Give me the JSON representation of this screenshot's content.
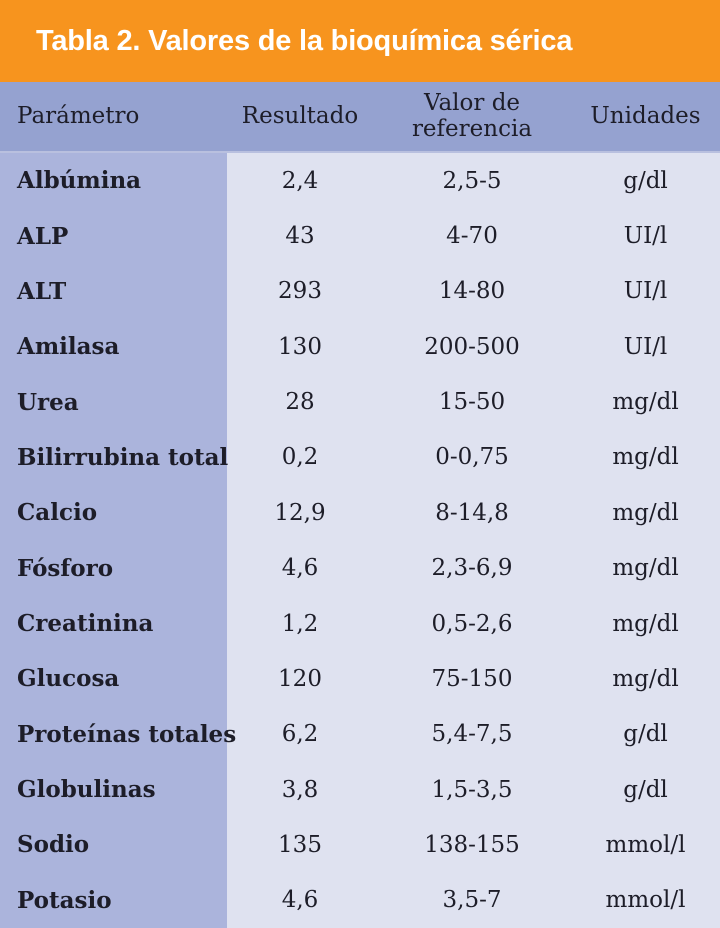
{
  "title": "Tabla 2. Valores de la bioquímica sérica",
  "colors": {
    "accent-orange": "#F7941E",
    "header-blue": "#95A2D0",
    "param-column-blue": "#ABB4DC",
    "body-lavender": "#DFE2F0",
    "text-dark": "#1D1D28",
    "title-white": "#FFFFFF"
  },
  "table": {
    "columns": [
      "Parámetro",
      "Resultado",
      "Valor de referencia",
      "Unidades"
    ],
    "rows": [
      {
        "parametro": "Albúmina",
        "resultado": "2,4",
        "referencia": "2,5-5",
        "unidades": "g/dl"
      },
      {
        "parametro": "ALP",
        "resultado": "43",
        "referencia": "4-70",
        "unidades": "UI/l"
      },
      {
        "parametro": "ALT",
        "resultado": "293",
        "referencia": "14-80",
        "unidades": "UI/l"
      },
      {
        "parametro": "Amilasa",
        "resultado": "130",
        "referencia": "200-500",
        "unidades": "UI/l"
      },
      {
        "parametro": "Urea",
        "resultado": "28",
        "referencia": "15-50",
        "unidades": "mg/dl"
      },
      {
        "parametro": "Bilirrubina total",
        "resultado": "0,2",
        "referencia": "0-0,75",
        "unidades": "mg/dl"
      },
      {
        "parametro": "Calcio",
        "resultado": "12,9",
        "referencia": "8-14,8",
        "unidades": "mg/dl"
      },
      {
        "parametro": "Fósforo",
        "resultado": "4,6",
        "referencia": "2,3-6,9",
        "unidades": "mg/dl"
      },
      {
        "parametro": "Creatinina",
        "resultado": "1,2",
        "referencia": "0,5-2,6",
        "unidades": "mg/dl"
      },
      {
        "parametro": "Glucosa",
        "resultado": "120",
        "referencia": "75-150",
        "unidades": "mg/dl"
      },
      {
        "parametro": "Proteínas totales",
        "resultado": "6,2",
        "referencia": "5,4-7,5",
        "unidades": "g/dl"
      },
      {
        "parametro": "Globulinas",
        "resultado": "3,8",
        "referencia": "1,5-3,5",
        "unidades": "g/dl"
      },
      {
        "parametro": "Sodio",
        "resultado": "135",
        "referencia": "138-155",
        "unidades": "mmol/l"
      },
      {
        "parametro": "Potasio",
        "resultado": "4,6",
        "referencia": "3,5-7",
        "unidades": "mmol/l"
      }
    ]
  }
}
